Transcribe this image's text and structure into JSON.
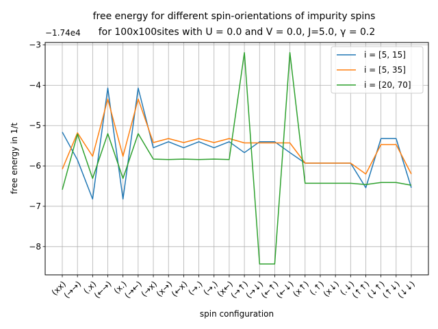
{
  "chart_data": {
    "type": "line",
    "title_line1": "free energy for different spin-orientations of impurity spins",
    "title_line2": "for 100x100sites with U = 0.0 and V = 0.0, J=5.0, γ = 0.2",
    "xlabel": "spin configuration",
    "ylabel": "free energy in 1/t",
    "offset_text": "−1.74e4",
    "categories": [
      "(xx)",
      "(→→)",
      "(.x)",
      "(←→)",
      "(x.)",
      "(→←)",
      "(→x)",
      "(x→)",
      "(←x)",
      "(→.)",
      "(→,)",
      "(x←)",
      "(→↑)",
      "(→↓)",
      "(←↑)",
      "(←↓)",
      "(x↑)",
      "(.↑)",
      "(x↓)",
      "(.↓)",
      "(↑↑)",
      "(↓↑)",
      "(↑↓)",
      "(↓↓)"
    ],
    "yticks": [
      -3,
      -4,
      -5,
      -6,
      -7,
      -8
    ],
    "ytick_labels": [
      "−3",
      "−4",
      "−5",
      "−6",
      "−7",
      "−8"
    ],
    "ylim": [
      -8.7,
      -2.94
    ],
    "grid": true,
    "legend_position": "top-right",
    "series": [
      {
        "name": "i = [5, 15]",
        "color": "#1f77b4",
        "values": [
          -5.16,
          -5.85,
          -6.82,
          -4.07,
          -6.82,
          -4.07,
          -5.55,
          -5.4,
          -5.55,
          -5.4,
          -5.55,
          -5.4,
          -5.67,
          -5.4,
          -5.4,
          -5.67,
          -5.93,
          -5.93,
          -5.93,
          -5.93,
          -6.54,
          -5.32,
          -5.32,
          -6.54
        ]
      },
      {
        "name": "i = [5, 35]",
        "color": "#ff7f0e",
        "values": [
          -6.08,
          -5.18,
          -5.76,
          -4.34,
          -5.76,
          -4.34,
          -5.42,
          -5.32,
          -5.42,
          -5.32,
          -5.42,
          -5.32,
          -5.43,
          -5.43,
          -5.43,
          -5.43,
          -5.93,
          -5.93,
          -5.93,
          -5.93,
          -6.2,
          -5.47,
          -5.47,
          -6.2
        ]
      },
      {
        "name": "i = [20, 70]",
        "color": "#2ca02c",
        "values": [
          -6.59,
          -5.21,
          -6.31,
          -5.2,
          -6.31,
          -5.2,
          -5.83,
          -5.84,
          -5.83,
          -5.84,
          -5.83,
          -5.84,
          -3.19,
          -8.43,
          -8.43,
          -3.19,
          -6.43,
          -6.43,
          -6.43,
          -6.43,
          -6.46,
          -6.41,
          -6.41,
          -6.48
        ]
      }
    ]
  }
}
